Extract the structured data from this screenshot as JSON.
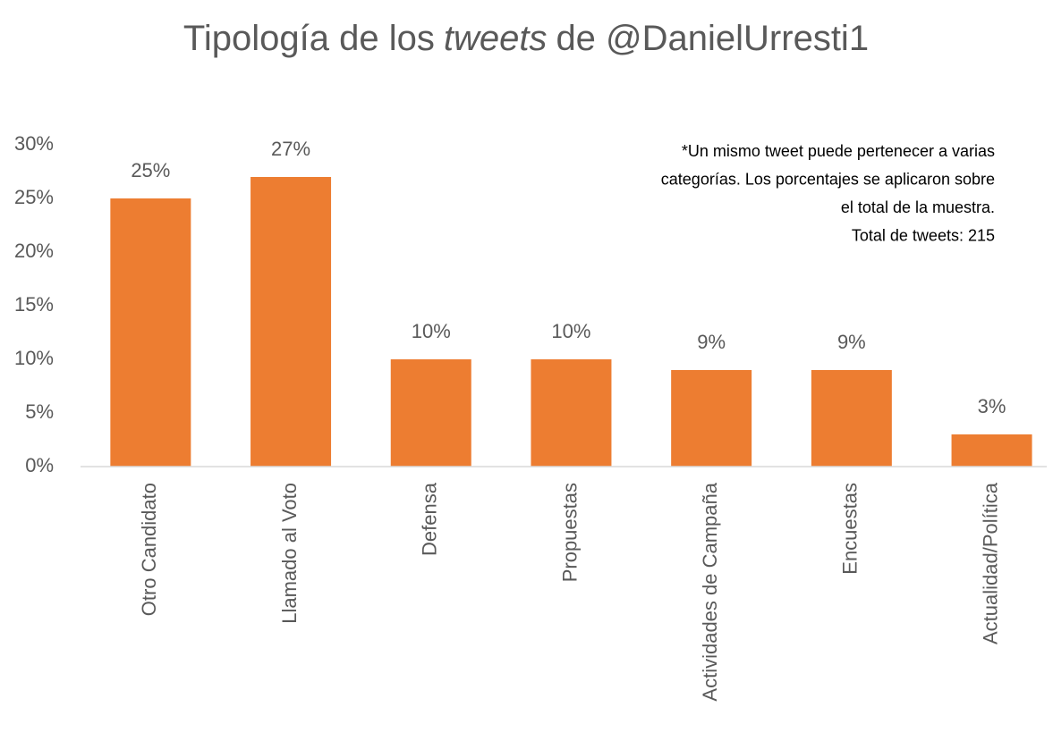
{
  "chart_data": {
    "type": "bar",
    "title": [
      "Tipología de los",
      "tweets",
      "de @DanielUrresti1"
    ],
    "annotation": [
      "*Un mismo tweet puede pertenecer a varias",
      "categorías. Los porcentajes se aplicaron sobre",
      "el total de la muestra.",
      "Total de tweets: 215"
    ],
    "categories": [
      "Otro Candidato",
      "Llamado al Voto",
      "Defensa",
      "Propuestas",
      "Actividades de Campaña",
      "Encuestas",
      "Actualidad/Política"
    ],
    "values": [
      25,
      27,
      10,
      10,
      9,
      9,
      3
    ],
    "value_labels": [
      "25%",
      "27%",
      "10%",
      "10%",
      "9%",
      "9%",
      "3%"
    ],
    "color": "#ed7d31",
    "ylim": [
      0,
      30
    ],
    "yticks": [
      {
        "value": 0,
        "label": "0%"
      },
      {
        "value": 5,
        "label": "5%"
      },
      {
        "value": 10,
        "label": "10%"
      },
      {
        "value": 15,
        "label": "15%"
      },
      {
        "value": 20,
        "label": "20%"
      },
      {
        "value": 25,
        "label": "25%"
      },
      {
        "value": 30,
        "label": "30%"
      }
    ],
    "grid": false
  }
}
